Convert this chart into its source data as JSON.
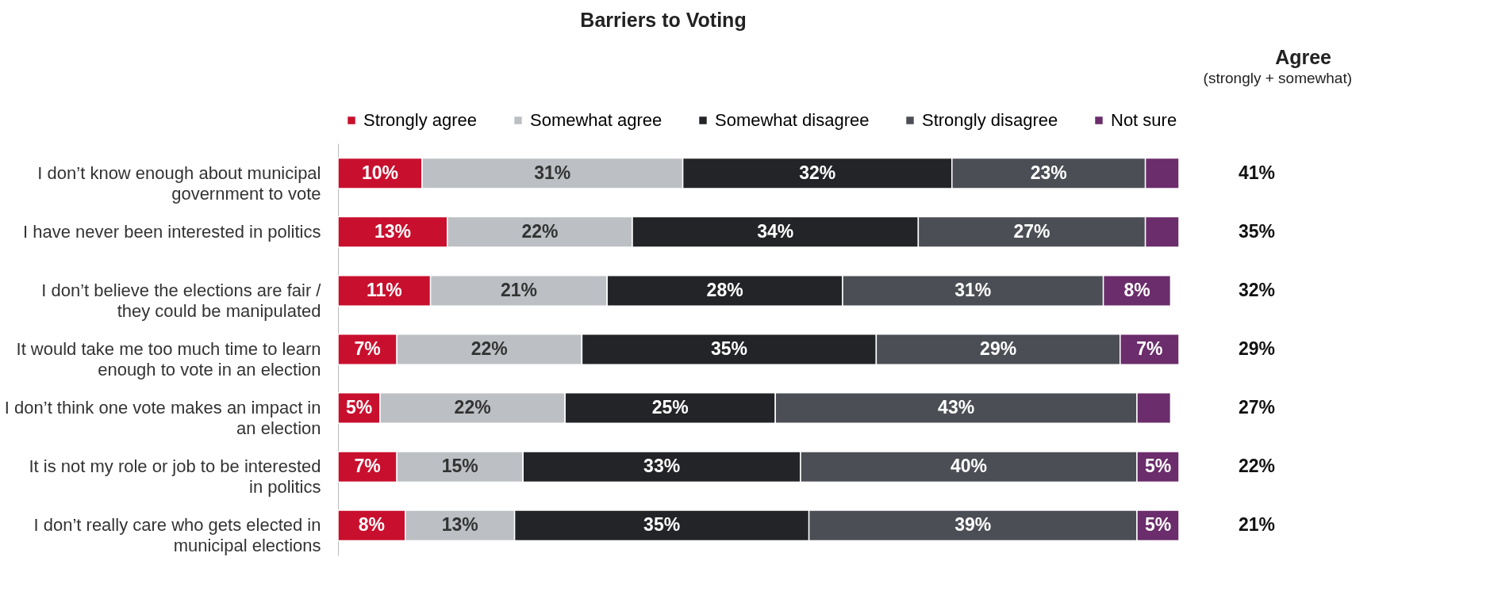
{
  "chart_data": {
    "type": "bar",
    "orientation": "horizontal",
    "stacked": true,
    "title": "Barriers to Voting",
    "categories": [
      "I don’t know enough about municipal government to vote",
      "I have never been interested in politics",
      "I don’t believe the elections are fair / they could be manipulated",
      "It would take me too much time to learn enough to vote in an election",
      "I don’t think one vote makes an impact in an election",
      "It is not my role or job to be interested in politics",
      "I don’t really care who gets elected in municipal elections"
    ],
    "series": [
      {
        "name": "Strongly agree",
        "color": "#c8102e",
        "values": [
          10,
          13,
          11,
          7,
          5,
          7,
          8
        ],
        "value_labels": [
          "10%",
          "13%",
          "11%",
          "7%",
          "5%",
          "7%",
          "8%"
        ]
      },
      {
        "name": "Somewhat agree",
        "color": "#bcc0c4",
        "values": [
          31,
          22,
          21,
          22,
          22,
          15,
          13
        ],
        "value_labels": [
          "31%",
          "22%",
          "21%",
          "22%",
          "22%",
          "15%",
          "13%"
        ]
      },
      {
        "name": "Somewhat disagree",
        "color": "#232427",
        "values": [
          32,
          34,
          28,
          35,
          25,
          33,
          35
        ],
        "value_labels": [
          "32%",
          "34%",
          "28%",
          "35%",
          "25%",
          "33%",
          "35%"
        ]
      },
      {
        "name": "Strongly disagree",
        "color": "#4b4e54",
        "values": [
          23,
          27,
          31,
          29,
          43,
          40,
          39
        ],
        "value_labels": [
          "23%",
          "27%",
          "31%",
          "29%",
          "43%",
          "40%",
          "39%"
        ]
      },
      {
        "name": "Not sure",
        "color": "#6b2d6b",
        "values": [
          4,
          4,
          8,
          7,
          4,
          5,
          5
        ],
        "value_labels": [
          null,
          null,
          "8%",
          "7%",
          null,
          "5%",
          "5%"
        ]
      }
    ],
    "legend": "top",
    "annotations": [
      "Agree",
      "(strongly + somewhat)",
      "41%",
      "35%",
      "32%",
      "29%",
      "27%",
      "22%",
      "21%"
    ]
  }
}
